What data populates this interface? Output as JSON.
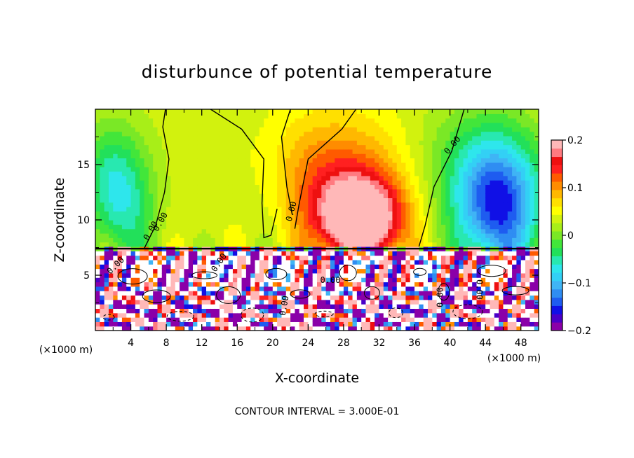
{
  "chart_data": {
    "type": "heatmap",
    "title": "disturbunce of potential temperature",
    "xlabel": "X-coordinate",
    "ylabel": "Z-coordinate",
    "x_unit": "(×1000 m)",
    "colorbar_unit": "(×1000 m)",
    "xlim": [
      0,
      50
    ],
    "ylim": [
      0,
      20
    ],
    "x_ticks": [
      4,
      8,
      12,
      16,
      20,
      24,
      28,
      32,
      36,
      40,
      44,
      48
    ],
    "y_ticks": [
      5,
      10,
      15
    ],
    "colorbar": {
      "range": [
        -0.2,
        0.2
      ],
      "ticks": [
        0.2,
        0.1,
        0,
        -0.1,
        -0.2
      ],
      "tick_labels": [
        "0.2",
        "0.1",
        "0",
        "−0.1",
        "−0.2"
      ],
      "colors": [
        "#8a00a8",
        "#4a00c8",
        "#1010e6",
        "#1e5cf0",
        "#2f8df2",
        "#3fb4f5",
        "#33d0f5",
        "#2ee6ec",
        "#28e8b0",
        "#22e05a",
        "#42e63a",
        "#7ae826",
        "#a8ee18",
        "#d2f20e",
        "#ffff00",
        "#ffe000",
        "#ffb800",
        "#ff8c00",
        "#ff5a00",
        "#ff2020",
        "#ee1010",
        "#ff7a80",
        "#ffb8b8"
      ]
    },
    "contour_interval": "CONTOUR INTERVAL = 3.000E-01",
    "contour_labels": [
      "0.00",
      "0.00",
      "0.00",
      "0.00",
      "0.00",
      "0.00",
      "0.00",
      "0.00",
      "0.00",
      "0.00"
    ],
    "layer_boundary_z": 7.4,
    "upper_features": [
      {
        "kind": "warm",
        "x": 30.0,
        "z": 10.0,
        "amp": 0.2
      },
      {
        "kind": "warm",
        "x": 27.0,
        "z": 13.5,
        "amp": 0.09
      },
      {
        "kind": "cold",
        "x": 45.5,
        "z": 11.0,
        "amp": -0.17
      },
      {
        "kind": "cold",
        "x": 3.5,
        "z": 11.5,
        "amp": -0.08
      },
      {
        "kind": "cold",
        "x": 19.5,
        "z": 12.0,
        "amp": -0.02
      }
    ]
  }
}
